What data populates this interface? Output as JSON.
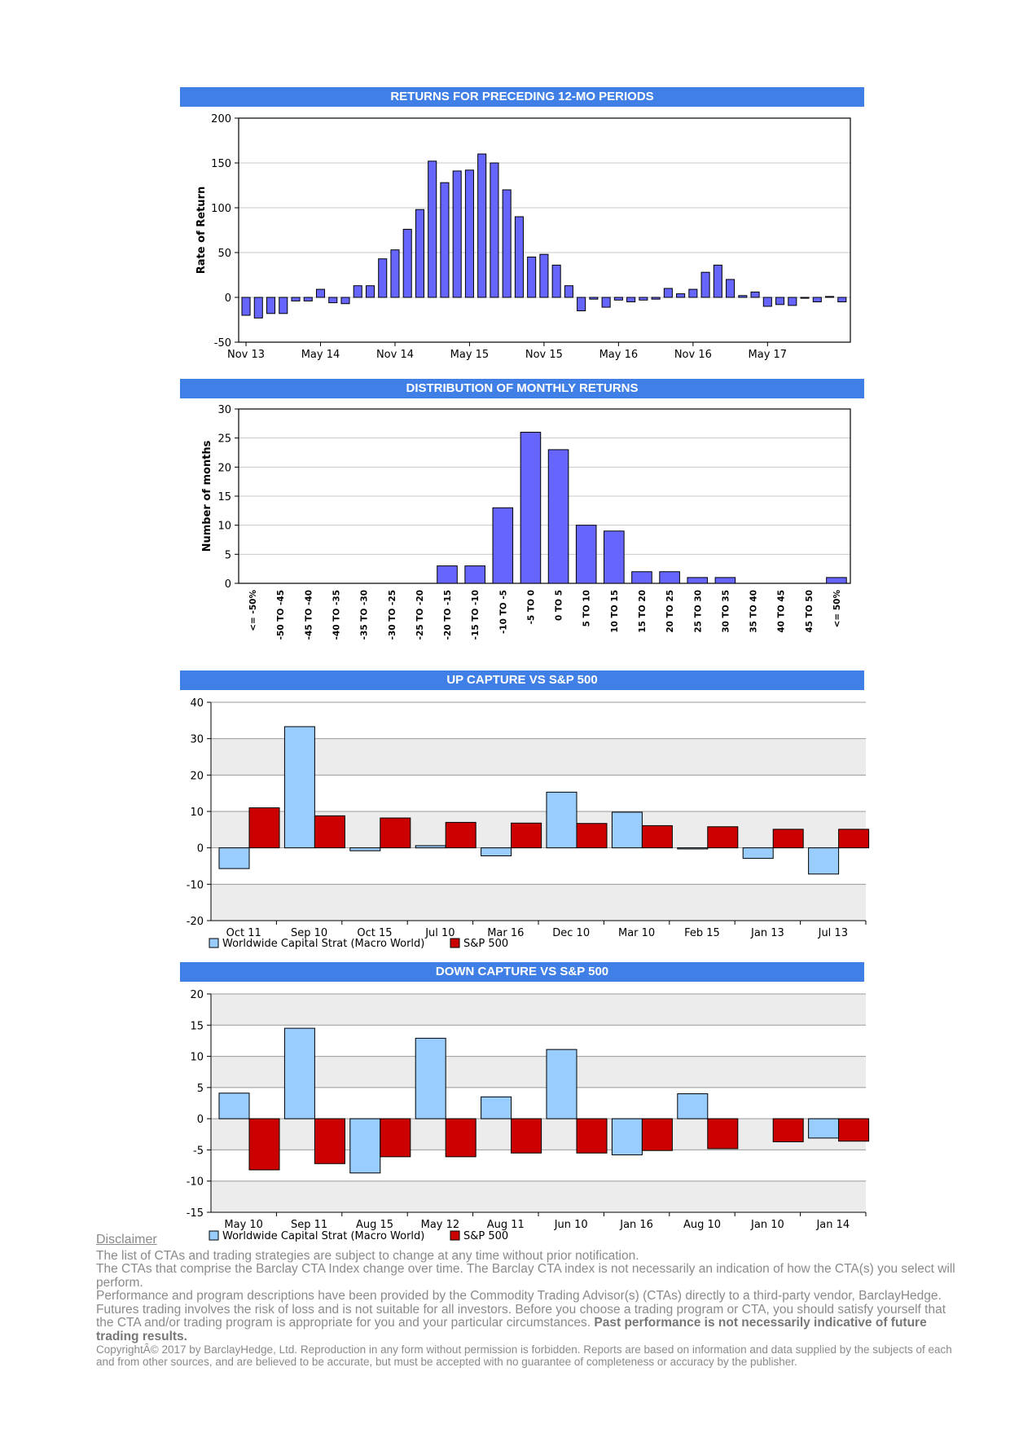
{
  "chart_data": [
    {
      "type": "bar",
      "title": "RETURNS FOR PRECEDING 12-MO PERIODS",
      "ylabel": "Rate of Return",
      "ylim": [
        -50,
        200
      ],
      "yticks": [
        -50,
        0,
        50,
        100,
        150,
        200
      ],
      "xticks": [
        "Nov 13",
        "May 14",
        "Nov 14",
        "May 15",
        "Nov 15",
        "May 16",
        "Nov 16",
        "May 17"
      ],
      "bar_color": "#6666ff",
      "values": [
        -20,
        -23,
        -18,
        -18,
        -4,
        -4,
        9,
        -6,
        -7,
        13,
        13,
        43,
        53,
        76,
        98,
        152,
        128,
        141,
        142,
        160,
        150,
        120,
        90,
        45,
        48,
        36,
        13,
        -15,
        -2,
        -11,
        -3,
        -5,
        -3,
        -2,
        10,
        4,
        9,
        28,
        36,
        20,
        2,
        6,
        -10,
        -8,
        -9,
        -1,
        -5,
        1,
        -5
      ]
    },
    {
      "type": "bar",
      "title": "DISTRIBUTION OF MONTHLY RETURNS",
      "ylabel": "Number of months",
      "ylim": [
        0,
        30
      ],
      "yticks": [
        0,
        5,
        10,
        15,
        20,
        25,
        30
      ],
      "bar_color": "#6666ff",
      "categories": [
        "<= -50%",
        "-50 TO -45",
        "-45 TO -40",
        "-40 TO -35",
        "-35 TO -30",
        "-30 TO -25",
        "-25 TO -20",
        "-20 TO -15",
        "-15 TO -10",
        "-10 TO -5",
        "-5 TO 0",
        "0 TO 5",
        "5 TO 10",
        "10 TO 15",
        "15 TO 20",
        "20 TO 25",
        "25 TO 30",
        "30 TO 35",
        "35 TO 40",
        "40 TO 45",
        "45 TO 50",
        "<= 50%"
      ],
      "values": [
        0,
        0,
        0,
        0,
        0,
        0,
        0,
        3,
        3,
        13,
        26,
        23,
        10,
        9,
        2,
        2,
        1,
        1,
        0,
        0,
        0,
        1
      ]
    },
    {
      "type": "bar",
      "title": "UP CAPTURE VS S&P 500",
      "ylim": [
        -20,
        40
      ],
      "yticks": [
        -20,
        -10,
        0,
        10,
        20,
        30,
        40
      ],
      "categories": [
        "Oct 11",
        "Sep 10",
        "Oct 15",
        "Jul 10",
        "Mar 16",
        "Dec 10",
        "Mar 10",
        "Feb 15",
        "Jan 13",
        "Jul 13"
      ],
      "series": [
        {
          "name": "Worldwide Capital Strat (Macro World)",
          "color": "#99ccff",
          "values": [
            -5.7,
            33.3,
            -0.8,
            0.6,
            -2.2,
            15.3,
            9.8,
            -0.3,
            -2.9,
            -7.2
          ]
        },
        {
          "name": "S&P 500",
          "color": "#cc0000",
          "values": [
            11.0,
            8.8,
            8.2,
            7.0,
            6.8,
            6.7,
            6.1,
            5.8,
            5.1,
            5.1
          ]
        }
      ],
      "legend_position": "bottom-left"
    },
    {
      "type": "bar",
      "title": "DOWN CAPTURE VS S&P 500",
      "ylim": [
        -15,
        20
      ],
      "yticks": [
        -15,
        -10,
        -5,
        0,
        5,
        10,
        15,
        20
      ],
      "categories": [
        "May 10",
        "Sep 11",
        "Aug 15",
        "May 12",
        "Aug 11",
        "Jun 10",
        "Jan 16",
        "Aug 10",
        "Jan 10",
        "Jan 14"
      ],
      "series": [
        {
          "name": "Worldwide Capital Strat (Macro World)",
          "color": "#99ccff",
          "values": [
            4.1,
            14.5,
            -8.7,
            12.9,
            3.5,
            11.1,
            -5.8,
            4.0,
            0,
            -3.1
          ]
        },
        {
          "name": "S&P 500",
          "color": "#cc0000",
          "values": [
            -8.2,
            -7.2,
            -6.1,
            -6.1,
            -5.5,
            -5.5,
            -5.1,
            -4.8,
            -3.7,
            -3.6
          ]
        }
      ],
      "legend_position": "bottom-left"
    }
  ],
  "disclaimer": {
    "title": "Disclaimer",
    "line1": "The list of CTAs and trading strategies are subject to change at any time without prior notification.",
    "line2": "The CTAs that comprise the Barclay CTA Index change over time.  The Barclay CTA index is not necessarily an indication of how the CTA(s) you select will perform.",
    "line3": "Performance and program descriptions have been provided by the Commodity Trading Advisor(s) (CTAs) directly to a third-party vendor, BarclayHedge. Futures trading involves the risk of loss and is not suitable for all investors.  Before you choose a trading program or CTA, you should satisfy yourself that the CTA and/or trading program is appropriate for you and your particular circumstances.",
    "bold": "Past performance is not necessarily indicative of future trading results.",
    "copyright": "CopyrightÂ©  2017 by BarclayHedge, Ltd. Reproduction in any form without permission is forbidden. Reports are based on information and data supplied by the subjects of each and from other sources, and are believed to be accurate, but must be accepted with no guarantee of completeness or accuracy by the publisher."
  }
}
